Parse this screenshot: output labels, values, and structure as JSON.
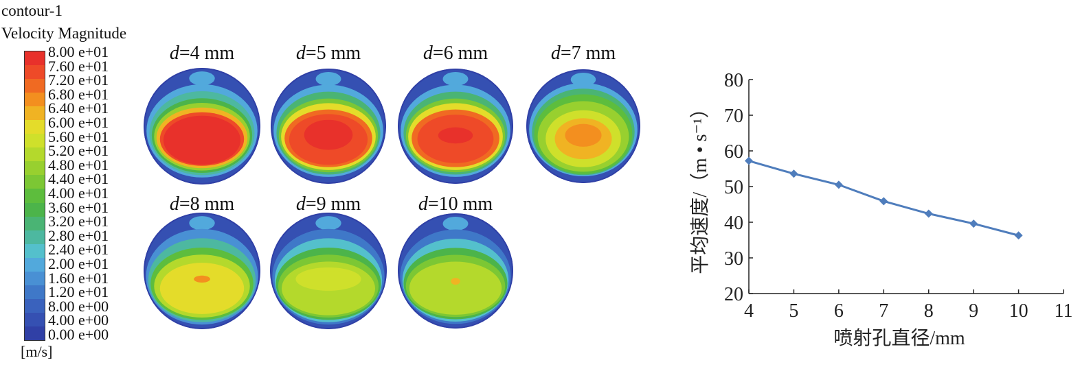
{
  "legend": {
    "title_line1": "contour-1",
    "title_line2": "Velocity Magnitude",
    "unit": "[m/s]",
    "levels": [
      "8.00 e+01",
      "7.60 e+01",
      "7.20 e+01",
      "6.80 e+01",
      "6.40 e+01",
      "6.00 e+01",
      "5.60 e+01",
      "5.20 e+01",
      "4.80 e+01",
      "4.40 e+01",
      "4.00 e+01",
      "3.60 e+01",
      "3.20 e+01",
      "2.80 e+01",
      "2.40 e+01",
      "2.00 e+01",
      "1.60 e+01",
      "1.20 e+01",
      "8.00 e+00",
      "4.00 e+00",
      "0.00 e+00"
    ],
    "colors": [
      "#e8312b",
      "#ee4a28",
      "#f06a22",
      "#f38f1f",
      "#f0b323",
      "#e4dc2a",
      "#cfe02b",
      "#b4d92c",
      "#98d02f",
      "#7cc734",
      "#5dbd3d",
      "#4cb44a",
      "#4ab474",
      "#4db8a0",
      "#54c0cc",
      "#52a9dc",
      "#4990d4",
      "#3f78c8",
      "#3a62bd",
      "#3550b2",
      "#3040a6"
    ]
  },
  "contour_panels": [
    {
      "var": "d",
      "rest": "=4 mm"
    },
    {
      "var": "d",
      "rest": "=5 mm"
    },
    {
      "var": "d",
      "rest": "=6 mm"
    },
    {
      "var": "d",
      "rest": "=7 mm"
    },
    {
      "var": "d",
      "rest": "=8 mm"
    },
    {
      "var": "d",
      "rest": "=9 mm"
    },
    {
      "var": "d",
      "rest": "=10 mm"
    }
  ],
  "chart_data": {
    "type": "line",
    "xlabel": "喷射孔直径/mm",
    "ylabel": "平均速度/（m • s⁻¹）",
    "xlim": [
      4,
      11
    ],
    "ylim": [
      20,
      80
    ],
    "xticks": [
      4,
      5,
      6,
      7,
      8,
      9,
      10,
      11
    ],
    "yticks": [
      20,
      30,
      40,
      50,
      60,
      70,
      80
    ],
    "grid": false,
    "series": [
      {
        "x": [
          4,
          5,
          6,
          7,
          8,
          9,
          10
        ],
        "y": [
          57.2,
          53.6,
          50.5,
          45.9,
          42.4,
          39.6,
          36.3
        ],
        "color": "#4f7dbc",
        "marker": "diamond"
      }
    ]
  }
}
